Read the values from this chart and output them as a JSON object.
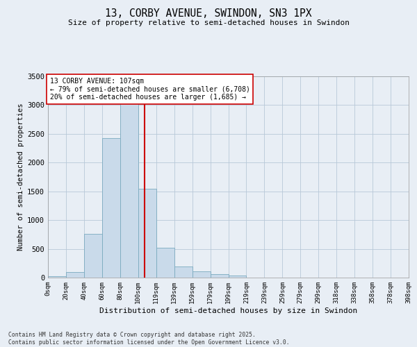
{
  "title_line1": "13, CORBY AVENUE, SWINDON, SN3 1PX",
  "title_line2": "Size of property relative to semi-detached houses in Swindon",
  "xlabel": "Distribution of semi-detached houses by size in Swindon",
  "ylabel": "Number of semi-detached properties",
  "bins": [
    "0sqm",
    "20sqm",
    "40sqm",
    "60sqm",
    "80sqm",
    "100sqm",
    "119sqm",
    "139sqm",
    "159sqm",
    "179sqm",
    "199sqm",
    "219sqm",
    "239sqm",
    "259sqm",
    "279sqm",
    "299sqm",
    "318sqm",
    "338sqm",
    "358sqm",
    "378sqm",
    "398sqm"
  ],
  "values": [
    20,
    100,
    760,
    2420,
    3280,
    1540,
    520,
    195,
    105,
    55,
    35,
    0,
    0,
    0,
    0,
    0,
    0,
    0,
    0,
    0
  ],
  "bar_color": "#c9daea",
  "bar_edge_color": "#7aaabf",
  "vline_color": "#cc0000",
  "annotation_title": "13 CORBY AVENUE: 107sqm",
  "annotation_line1": "← 79% of semi-detached houses are smaller (6,708)",
  "annotation_line2": "20% of semi-detached houses are larger (1,685) →",
  "ylim": [
    0,
    3500
  ],
  "yticks": [
    0,
    500,
    1000,
    1500,
    2000,
    2500,
    3000,
    3500
  ],
  "bg_color": "#e8eef5",
  "plot_bg_color": "#e8eef5",
  "footnote": "Contains HM Land Registry data © Crown copyright and database right 2025.\nContains public sector information licensed under the Open Government Licence v3.0.",
  "property_sqm": 107
}
